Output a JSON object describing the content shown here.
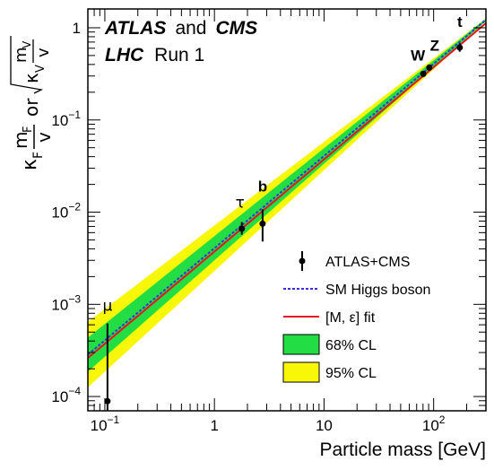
{
  "chart_data": {
    "type": "scatter",
    "header": {
      "line1_a": "ATLAS",
      "line1_b": "and",
      "line1_c": "CMS",
      "line2_a": "LHC",
      "line2_b": "Run 1"
    },
    "xlabel": "Particle mass [GeV]",
    "ylabel": {
      "kappa_f": "κ",
      "sub_f": "F",
      "frac_f_num": "m",
      "frac_f_num_sub": "F",
      "frac_f_den": "v",
      "or": "or",
      "sqrt_kappa": "κ",
      "sub_v": "V",
      "frac_v_num": "m",
      "frac_v_num_sub": "V",
      "frac_v_den": "v"
    },
    "xscale": "log",
    "yscale": "log",
    "xlim": [
      0.07,
      300
    ],
    "ylim": [
      7e-05,
      1.6
    ],
    "x_tick_labels": [
      {
        "v": 0.1,
        "t": "10",
        "exp": "−1"
      },
      {
        "v": 1,
        "t": "1",
        "exp": ""
      },
      {
        "v": 10,
        "t": "10",
        "exp": ""
      },
      {
        "v": 100,
        "t": "10",
        "exp": "2"
      }
    ],
    "y_tick_labels": [
      {
        "v": 0.0001,
        "t": "10",
        "exp": "−4"
      },
      {
        "v": 0.001,
        "t": "10",
        "exp": "−3"
      },
      {
        "v": 0.01,
        "t": "10",
        "exp": "−2"
      },
      {
        "v": 0.1,
        "t": "10",
        "exp": "−1"
      },
      {
        "v": 1,
        "t": "1",
        "exp": ""
      }
    ],
    "points": [
      {
        "label": "μ",
        "x": 0.1057,
        "y": 8.9e-05,
        "ylo": 7e-05,
        "yhi": 0.00062
      },
      {
        "label": "τ",
        "x": 1.777,
        "y": 0.0066,
        "ylo": 0.0057,
        "yhi": 0.0078
      },
      {
        "label": "b",
        "x": 2.75,
        "y": 0.0075,
        "ylo": 0.0048,
        "yhi": 0.0107
      },
      {
        "label": "W",
        "x": 80.4,
        "y": 0.316,
        "ylo": 0.294,
        "yhi": 0.338
      },
      {
        "label": "Z",
        "x": 91.2,
        "y": 0.37,
        "ylo": 0.347,
        "yhi": 0.393
      },
      {
        "label": "t",
        "x": 173,
        "y": 0.61,
        "ylo": 0.55,
        "yhi": 0.68
      }
    ],
    "series": [
      {
        "name": "ATLAS+CMS",
        "kind": "points",
        "color": "#000000"
      },
      {
        "name": "SM Higgs boson",
        "kind": "dashed-line",
        "color": "#3b33d6"
      },
      {
        "name": "[M, ε] fit",
        "kind": "line",
        "color": "#e8141e"
      },
      {
        "name": "68% CL",
        "kind": "band",
        "color": "#22dd44"
      },
      {
        "name": "95% CL",
        "kind": "band",
        "color": "#f7f707"
      }
    ],
    "legend_placement": "bottom-right"
  }
}
